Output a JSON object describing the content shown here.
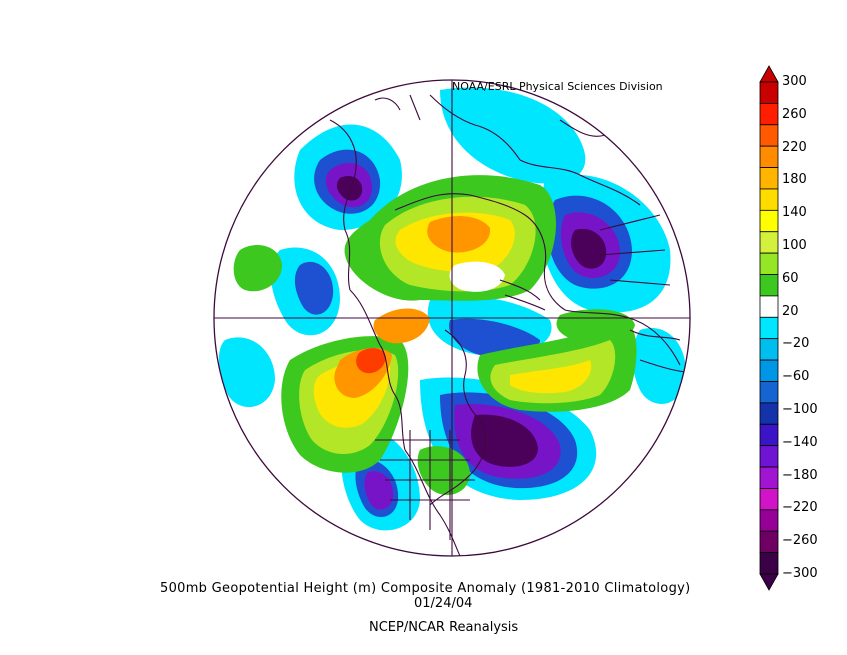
{
  "credit": "NOAA/ESRL Physical Sciences Division",
  "title": "500mb Geopotential Height (m) Composite Anomaly (1981-2010 Climatology)",
  "date": "01/24/04",
  "source": "NCEP/NCAR Reanalysis",
  "colorbar": {
    "labels": [
      "300",
      "260",
      "220",
      "180",
      "140",
      "100",
      "60",
      "20",
      "-20",
      "-60",
      "-100",
      "-140",
      "-180",
      "-220",
      "-260",
      "-300"
    ],
    "colors": [
      "#c80000",
      "#ff1e00",
      "#ff5a00",
      "#ff8c00",
      "#ffb400",
      "#ffdc00",
      "#ffff00",
      "#d2f03c",
      "#96e628",
      "#3cc81e",
      "#ffffff",
      "#00e6ff",
      "#00bef0",
      "#0096e6",
      "#1464d2",
      "#1432aa",
      "#3c14c8",
      "#6e14d2",
      "#a014d2",
      "#d214c8",
      "#960096",
      "#6e0064",
      "#3c0046"
    ]
  },
  "map": {
    "projection": "north-polar-stereographic",
    "field": "500mb geopotential height anomaly",
    "colors": {
      "coast": "#3c0a3c",
      "deep_neg": "#4b005a",
      "purple": "#7814c8",
      "blue": "#1e50d2",
      "cyan": "#00bef0",
      "lightcyan": "#00e6ff",
      "green": "#3cc81e",
      "yellowgreen": "#b4e628",
      "yellow": "#ffe600",
      "orange": "#ff9600",
      "red": "#ff3c00"
    }
  }
}
